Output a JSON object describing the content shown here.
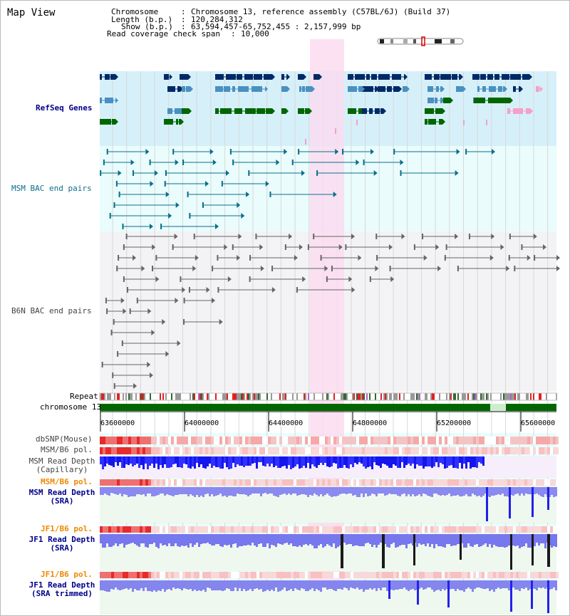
{
  "title": "Map View",
  "info": {
    "chromosome_label": "Chromosome",
    "chromosome_value": "Chromosome 13, reference assembly (C57BL/6J) (Build 37)",
    "length_label": "Length (b.p.)",
    "length_value": "120,284,312",
    "show_label": "Show (b.p.)",
    "show_value": "63,594,457-65,752,455 : 2,157,999 bp",
    "coverage_label": "Read coverage check span",
    "coverage_value": "10,000"
  },
  "tracks": {
    "refseq": "RefSeq Genes",
    "msm_bac": "MSM BAC end pairs",
    "b6n_bac": "B6N BAC end pairs",
    "repeat": "Repeat",
    "chromosome": "chromosome 13",
    "dbsnp": "dbSNP(Mouse)",
    "msm_b6_pol_1": "MSM/B6 pol.",
    "msm_depth_cap_1": "MSM Read Depth",
    "msm_depth_cap_2": "(Capillary)",
    "msm_b6_pol_2": "MSM/B6 pol.",
    "msm_depth_sra_1": "MSM Read Depth",
    "msm_depth_sra_2": "(SRA)",
    "jf1_b6_pol_1": "JF1/B6 pol.",
    "jf1_depth_sra_1": "JF1 Read Depth",
    "jf1_depth_sra_2": "(SRA)",
    "jf1_b6_pol_2": "JF1/B6 pol.",
    "jf1_depth_trim_1": "JF1 Read Depth",
    "jf1_depth_trim_2": "(SRA trimmed)"
  },
  "axis_ticks": [
    "63600000",
    "64000000",
    "64400000",
    "64800000",
    "65200000",
    "65600000"
  ],
  "colors": {
    "refseq_bg": "#d6f0fa",
    "panel_bg": "#eafcfc",
    "highlight": "#fadcf0",
    "navy": "#002a66",
    "steel": "#4a90c0",
    "green": "#006600",
    "pink": "#f4a0c8",
    "depth_blue": "#1515ee",
    "depth_light": "#8888ff"
  }
}
